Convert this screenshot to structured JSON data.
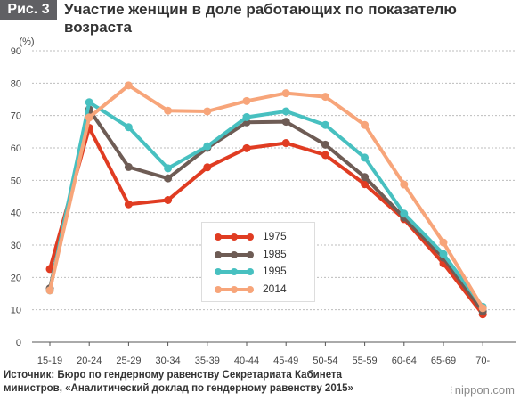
{
  "header": {
    "badge": "Рис. 3",
    "title": "Участие женщин в доле работающих по показателю возраста"
  },
  "source": {
    "line1": "Источник: Бюро по гендерному равенству Секретариата Кабинета",
    "line2": "министров, «Аналитический доклад по гендерному равенству 2015»"
  },
  "brand": {
    "mark": "⁝",
    "name": "nippon.com"
  },
  "chart_data": {
    "type": "line",
    "title": "Участие женщин в доле работающих по показателю возраста",
    "xlabel": "",
    "ylabel": "(%)",
    "ylim": [
      0,
      90
    ],
    "yticks": [
      0,
      10,
      20,
      30,
      40,
      50,
      60,
      70,
      80,
      90
    ],
    "grid": true,
    "legend_position": "bottom-center",
    "categories": [
      "15-19",
      "20-24",
      "25-29",
      "30-34",
      "35-39",
      "40-44",
      "45-49",
      "50-54",
      "55-59",
      "60-64",
      "65-69",
      "70-"
    ],
    "series": [
      {
        "name": "1975",
        "color": "#e03c22",
        "values": [
          22.6,
          66.2,
          42.6,
          43.9,
          54.0,
          59.9,
          61.5,
          57.8,
          48.8,
          38.0,
          24.3,
          8.6
        ]
      },
      {
        "name": "1985",
        "color": "#6e5c55",
        "values": [
          16.6,
          71.9,
          54.1,
          50.6,
          60.0,
          67.9,
          68.1,
          61.0,
          51.0,
          38.5,
          26.1,
          9.5
        ]
      },
      {
        "name": "1995",
        "color": "#47c0c0",
        "values": [
          16.0,
          74.1,
          66.4,
          53.7,
          60.5,
          69.5,
          71.3,
          67.1,
          57.0,
          39.7,
          27.2,
          10.9
        ]
      },
      {
        "name": "2014",
        "color": "#f7a57a",
        "values": [
          16.0,
          69.4,
          79.3,
          71.5,
          71.3,
          74.5,
          76.9,
          75.8,
          67.1,
          48.7,
          30.8,
          10.5
        ]
      }
    ]
  }
}
